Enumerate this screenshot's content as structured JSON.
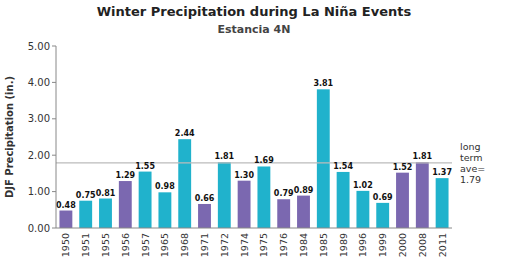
{
  "chart_data": {
    "type": "bar",
    "title": "Winter Precipitation during La Niña Events",
    "subtitle": "Estancia 4N",
    "y_label": "DJF Precipitation (in.)",
    "categories": [
      "1950",
      "1951",
      "1955",
      "1956",
      "1957",
      "1965",
      "1968",
      "1971",
      "1972",
      "1974",
      "1975",
      "1976",
      "1984",
      "1985",
      "1989",
      "1996",
      "1999",
      "2000",
      "2008",
      "2011"
    ],
    "values": [
      0.48,
      0.75,
      0.81,
      1.29,
      1.55,
      0.98,
      2.44,
      0.66,
      1.81,
      1.3,
      1.69,
      0.79,
      0.89,
      3.81,
      1.54,
      1.02,
      0.69,
      1.52,
      1.81,
      1.37
    ],
    "value_labels": [
      "0.48",
      "0.75",
      "0.81",
      "1.29",
      "1.55",
      "0.98",
      "2.44",
      "0.66",
      "1.81",
      "1.30",
      "1.69",
      "0.79",
      "0.89",
      "3.81",
      "1.54",
      "1.02",
      "0.69",
      "1.52",
      "1.81",
      "1.37"
    ],
    "colors": [
      "#7B68B0",
      "#20B2CC",
      "#20B2CC",
      "#7B68B0",
      "#20B2CC",
      "#20B2CC",
      "#20B2CC",
      "#7B68B0",
      "#20B2CC",
      "#7B68B0",
      "#20B2CC",
      "#7B68B0",
      "#7B68B0",
      "#20B2CC",
      "#20B2CC",
      "#20B2CC",
      "#20B2CC",
      "#7B68B0",
      "#7B68B0",
      "#20B2CC"
    ],
    "ylim": [
      0,
      5.0
    ],
    "yticks": [
      {
        "value": 0.0,
        "label": "0.00"
      },
      {
        "value": 1.0,
        "label": "1.00"
      },
      {
        "value": 2.0,
        "label": "2.00"
      },
      {
        "value": 3.0,
        "label": "3.00"
      },
      {
        "value": 4.0,
        "label": "4.00"
      },
      {
        "value": 5.0,
        "label": "5.00"
      }
    ],
    "annotations": [
      {
        "text": "long\nterm\nave=\n1.79",
        "y": 1.79,
        "color": "#bbbbbb"
      }
    ],
    "data_labels": true,
    "grid": false
  }
}
